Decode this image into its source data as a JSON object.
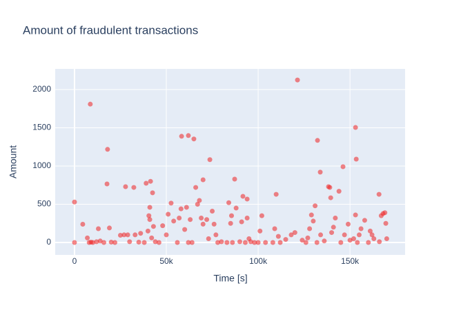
{
  "chart_data": {
    "type": "scatter",
    "title": "Amount of fraudulent transactions",
    "xlabel": "Time [s]",
    "ylabel": "Amount",
    "xlim": [
      -10500,
      180000
    ],
    "ylim": [
      -162,
      2270
    ],
    "xticks": [
      {
        "value": 0,
        "label": "0"
      },
      {
        "value": 50000,
        "label": "50k"
      },
      {
        "value": 100000,
        "label": "100k"
      },
      {
        "value": 150000,
        "label": "150k"
      }
    ],
    "yticks": [
      0,
      500,
      1000,
      1500,
      2000
    ],
    "grid": true,
    "background": "#e5ecf6",
    "color": "#ee2222",
    "opacity": 0.55,
    "x": [
      0,
      0,
      4500,
      8600,
      18000,
      17700,
      27800,
      32300,
      39000,
      41400,
      42500,
      52600,
      58300,
      62000,
      65000,
      70000,
      73700,
      87200,
      91700,
      94000,
      109800,
      121400,
      132300,
      133800,
      138300,
      139000,
      139500,
      146200,
      153000,
      153400,
      165800,
      168000,
      7000,
      8000,
      9000,
      10000,
      12000,
      13000,
      14000,
      16000,
      19000,
      20000,
      22000,
      25000,
      27000,
      29000,
      30000,
      33000,
      35000,
      36000,
      38000,
      40000,
      40500,
      41000,
      41000,
      42000,
      43000,
      44000,
      46000,
      48000,
      50000,
      51000,
      54000,
      56000,
      57000,
      58000,
      60000,
      61000,
      62000,
      63000,
      64000,
      66000,
      67000,
      68000,
      69000,
      70000,
      72000,
      73000,
      75000,
      76000,
      77000,
      78000,
      80000,
      83000,
      84000,
      85000,
      85500,
      86000,
      88000,
      90000,
      91000,
      93000,
      94000,
      95000,
      96000,
      100000,
      101000,
      102000,
      104000,
      108000,
      109000,
      111000,
      115000,
      118000,
      120000,
      124000,
      127000,
      128000,
      129000,
      130000,
      131000,
      132000,
      134000,
      136000,
      140000,
      141000,
      142000,
      144000,
      145000,
      147000,
      149000,
      150000,
      152000,
      153000,
      154000,
      155000,
      156000,
      158000,
      160000,
      161000,
      163000,
      166000,
      167000,
      169000,
      169500,
      170000,
      162000,
      112000,
      126000,
      98000
    ],
    "values": [
      0,
      529,
      239,
      1809,
      1218,
      766,
      730,
      720,
      775,
      800,
      650,
      515,
      1389,
      1398,
      1354,
      820,
      1083,
      829,
      604,
      568,
      630,
      2125,
      1335,
      920,
      730,
      720,
      585,
      991,
      1504,
      1090,
      630,
      378,
      60,
      0,
      5,
      0,
      10,
      180,
      20,
      0,
      190,
      5,
      0,
      95,
      100,
      100,
      10,
      100,
      5,
      120,
      0,
      150,
      350,
      460,
      300,
      60,
      210,
      10,
      0,
      220,
      100,
      370,
      280,
      0,
      320,
      440,
      170,
      460,
      0,
      300,
      0,
      720,
      500,
      550,
      320,
      240,
      300,
      50,
      410,
      240,
      100,
      0,
      10,
      0,
      520,
      250,
      350,
      0,
      450,
      10,
      270,
      0,
      320,
      50,
      10,
      0,
      150,
      350,
      0,
      0,
      180,
      80,
      40,
      100,
      130,
      30,
      60,
      180,
      360,
      280,
      480,
      0,
      100,
      20,
      130,
      200,
      320,
      670,
      0,
      100,
      240,
      30,
      50,
      360,
      0,
      100,
      180,
      290,
      0,
      150,
      50,
      10,
      350,
      390,
      250,
      50,
      100,
      0,
      0,
      0
    ]
  }
}
